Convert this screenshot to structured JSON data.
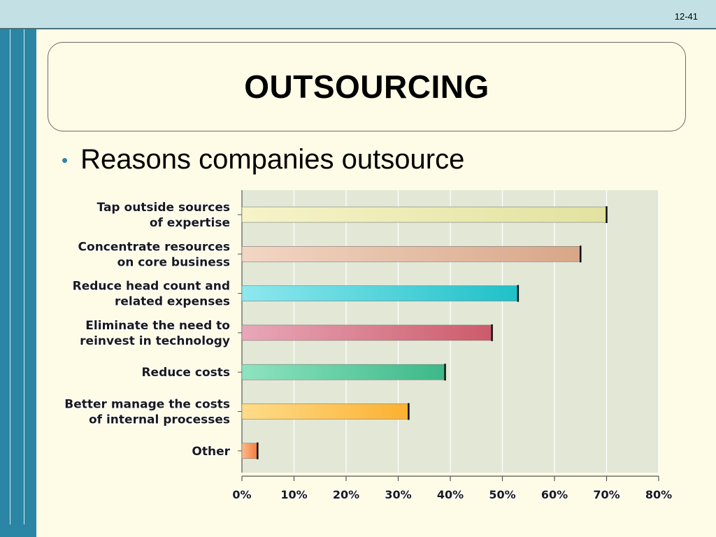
{
  "slide": {
    "number": "12-41",
    "title": "OUTSOURCING",
    "bullet": "Reasons companies outsource"
  },
  "colors": {
    "top_bar": "#c3e1e5",
    "left_bar": "#2a86a4",
    "background": "#fefbe6",
    "plot_background": "#e3e8d6"
  },
  "chart_data": {
    "type": "bar",
    "orientation": "horizontal",
    "categories": [
      [
        "Tap outside sources",
        "of expertise"
      ],
      [
        "Concentrate resources",
        "on core business"
      ],
      [
        "Reduce head count and",
        "related expenses"
      ],
      [
        "Eliminate the need to",
        "reinvest in technology"
      ],
      [
        "Reduce costs"
      ],
      [
        "Better manage the costs",
        "of internal processes"
      ],
      [
        "Other"
      ]
    ],
    "values": [
      70,
      65,
      53,
      48,
      39,
      32,
      3
    ],
    "bar_colors": [
      [
        "#f6f4c8",
        "#e2e2a0"
      ],
      [
        "#f2d6c4",
        "#d8a688"
      ],
      [
        "#8ee8ee",
        "#1fc0c8"
      ],
      [
        "#e8a8b8",
        "#cc5a6a"
      ],
      [
        "#8ee4c0",
        "#3cb888"
      ],
      [
        "#fedc8a",
        "#fcb030"
      ],
      [
        "#fcbc8c",
        "#f47a3a"
      ]
    ],
    "xlim": [
      0,
      80
    ],
    "ticks": [
      0,
      10,
      20,
      30,
      40,
      50,
      60,
      70,
      80
    ],
    "tick_labels": [
      "0%",
      "10%",
      "20%",
      "30%",
      "40%",
      "50%",
      "60%",
      "70%",
      "80%"
    ],
    "grid": true
  }
}
